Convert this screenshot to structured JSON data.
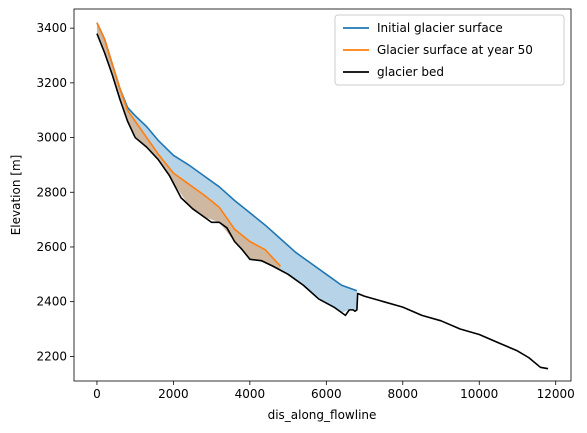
{
  "chart_data": {
    "type": "line",
    "xlabel": "dis_along_flowline",
    "ylabel": "Elevation [m]",
    "xlim": [
      -600,
      12400
    ],
    "ylim": [
      2110,
      3470
    ],
    "x_ticks": [
      0,
      2000,
      4000,
      6000,
      8000,
      10000,
      12000
    ],
    "y_ticks": [
      2200,
      2400,
      2600,
      2800,
      3000,
      3200,
      3400
    ],
    "legend_position": "top-right",
    "series": [
      {
        "name": "Initial glacier surface",
        "color": "#1f77b4",
        "x": [
          0,
          200,
          400,
          600,
          800,
          1000,
          1300,
          1600,
          2000,
          2400,
          2800,
          3200,
          3600,
          4000,
          4400,
          4800,
          5200,
          5600,
          6000,
          6400,
          6600,
          6800
        ],
        "y": [
          3420,
          3360,
          3270,
          3180,
          3110,
          3080,
          3040,
          2990,
          2935,
          2900,
          2860,
          2820,
          2770,
          2725,
          2680,
          2630,
          2580,
          2540,
          2500,
          2460,
          2450,
          2440
        ]
      },
      {
        "name": "Glacier surface at year 50",
        "color": "#ff7f0e",
        "x": [
          0,
          200,
          400,
          600,
          800,
          1000,
          1300,
          1600,
          2000,
          2400,
          2800,
          3200,
          3600,
          4000,
          4400,
          4800
        ],
        "y": [
          3420,
          3360,
          3270,
          3180,
          3100,
          3060,
          3000,
          2940,
          2870,
          2830,
          2790,
          2745,
          2665,
          2620,
          2590,
          2530
        ]
      },
      {
        "name": "glacier bed",
        "color": "#000000",
        "x": [
          0,
          200,
          400,
          600,
          800,
          1000,
          1300,
          1600,
          1900,
          2200,
          2500,
          2800,
          3000,
          3200,
          3400,
          3600,
          3800,
          4000,
          4300,
          4600,
          5000,
          5400,
          5800,
          6000,
          6200,
          6400,
          6500,
          6600,
          6700,
          6750,
          6800,
          6820,
          7000,
          7500,
          8000,
          8500,
          9000,
          9500,
          10000,
          10500,
          11000,
          11300,
          11600,
          11800
        ],
        "y": [
          3380,
          3310,
          3230,
          3140,
          3060,
          3000,
          2965,
          2920,
          2860,
          2780,
          2740,
          2710,
          2690,
          2690,
          2670,
          2620,
          2590,
          2555,
          2550,
          2530,
          2500,
          2460,
          2410,
          2395,
          2380,
          2360,
          2350,
          2370,
          2370,
          2365,
          2370,
          2430,
          2420,
          2400,
          2380,
          2350,
          2330,
          2300,
          2280,
          2250,
          2220,
          2195,
          2160,
          2155
        ]
      }
    ]
  }
}
